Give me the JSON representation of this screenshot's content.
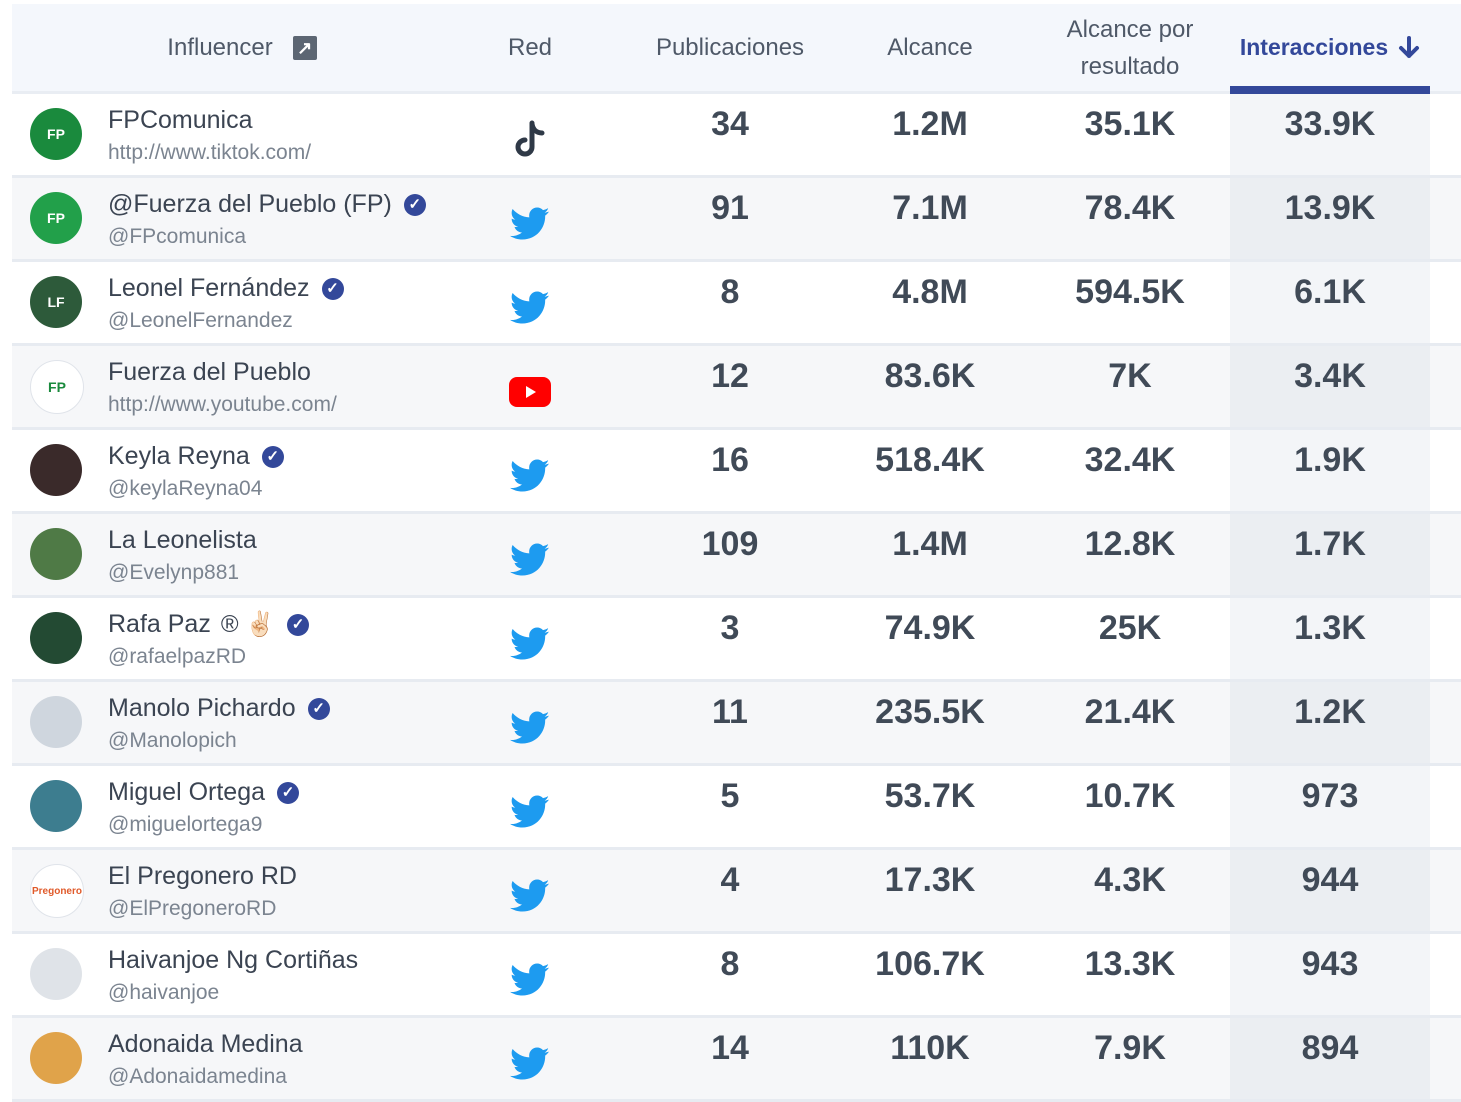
{
  "colors": {
    "accent": "#33489a",
    "twitter": "#1d9bf0",
    "youtube": "#ff0000",
    "tiktok": "#2f3947"
  },
  "header": {
    "influencer": "Influencer",
    "red": "Red",
    "publicaciones": "Publicaciones",
    "alcance": "Alcance",
    "alcance_por_resultado_1": "Alcance por",
    "alcance_por_resultado_2": "resultado",
    "interacciones": "Interacciones"
  },
  "rows": [
    {
      "name": "FPComunica",
      "handle": "http://www.tiktok.com/",
      "network": "tiktok",
      "verified": false,
      "publicaciones": "34",
      "alcance": "1.2M",
      "alcance_por_resultado": "35.1K",
      "interacciones": "33.9K",
      "avatar": "FP",
      "avatar_color": "#1a8a3d"
    },
    {
      "name": "@Fuerza del Pueblo (FP)",
      "handle": "@FPcomunica",
      "network": "twitter",
      "verified": true,
      "publicaciones": "91",
      "alcance": "7.1M",
      "alcance_por_resultado": "78.4K",
      "interacciones": "13.9K",
      "avatar": "FP",
      "avatar_color": "#22a04a"
    },
    {
      "name": "Leonel Fernández",
      "handle": "@LeonelFernandez",
      "network": "twitter",
      "verified": true,
      "publicaciones": "8",
      "alcance": "4.8M",
      "alcance_por_resultado": "594.5K",
      "interacciones": "6.1K",
      "avatar": "LF",
      "avatar_color": "#2d5a3a"
    },
    {
      "name": "Fuerza del Pueblo",
      "handle": "http://www.youtube.com/",
      "network": "youtube",
      "verified": false,
      "publicaciones": "12",
      "alcance": "83.6K",
      "alcance_por_resultado": "7K",
      "interacciones": "3.4K",
      "avatar": "FP",
      "avatar_color": "#ffffff"
    },
    {
      "name": "Keyla Reyna",
      "handle": "@keylaReyna04",
      "network": "twitter",
      "verified": true,
      "publicaciones": "16",
      "alcance": "518.4K",
      "alcance_por_resultado": "32.4K",
      "interacciones": "1.9K",
      "avatar": "",
      "avatar_color": "#3a2a2a"
    },
    {
      "name": "La Leonelista",
      "handle": "@Evelynp881",
      "network": "twitter",
      "verified": false,
      "publicaciones": "109",
      "alcance": "1.4M",
      "alcance_por_resultado": "12.8K",
      "interacciones": "1.7K",
      "avatar": "",
      "avatar_color": "#4f7a46"
    },
    {
      "name": "Rafa Paz",
      "extra": "® ✌🏻",
      "handle": "@rafaelpazRD",
      "network": "twitter",
      "verified": true,
      "publicaciones": "3",
      "alcance": "74.9K",
      "alcance_por_resultado": "25K",
      "interacciones": "1.3K",
      "avatar": "",
      "avatar_color": "#234a33"
    },
    {
      "name": "Manolo Pichardo",
      "handle": "@Manolopich",
      "network": "twitter",
      "verified": true,
      "publicaciones": "11",
      "alcance": "235.5K",
      "alcance_por_resultado": "21.4K",
      "interacciones": "1.2K",
      "avatar": "",
      "avatar_color": "#cfd6de"
    },
    {
      "name": "Miguel Ortega",
      "handle": "@miguelortega9",
      "network": "twitter",
      "verified": true,
      "publicaciones": "5",
      "alcance": "53.7K",
      "alcance_por_resultado": "10.7K",
      "interacciones": "973",
      "avatar": "",
      "avatar_color": "#3d7d8f"
    },
    {
      "name": "El Pregonero RD",
      "handle": "@ElPregoneroRD",
      "network": "twitter",
      "verified": false,
      "publicaciones": "4",
      "alcance": "17.3K",
      "alcance_por_resultado": "4.3K",
      "interacciones": "944",
      "avatar": "Pregonero",
      "avatar_color": "#ffffff"
    },
    {
      "name": "Haivanjoe Ng Cortiñas",
      "handle": "@haivanjoe",
      "network": "twitter",
      "verified": false,
      "publicaciones": "8",
      "alcance": "106.7K",
      "alcance_por_resultado": "13.3K",
      "interacciones": "943",
      "avatar": "",
      "avatar_color": "#dfe3e8"
    },
    {
      "name": "Adonaida Medina",
      "handle": "@Adonaidamedina",
      "network": "twitter",
      "verified": false,
      "publicaciones": "14",
      "alcance": "110K",
      "alcance_por_resultado": "7.9K",
      "interacciones": "894",
      "avatar": "",
      "avatar_color": "#e0a34a"
    }
  ]
}
